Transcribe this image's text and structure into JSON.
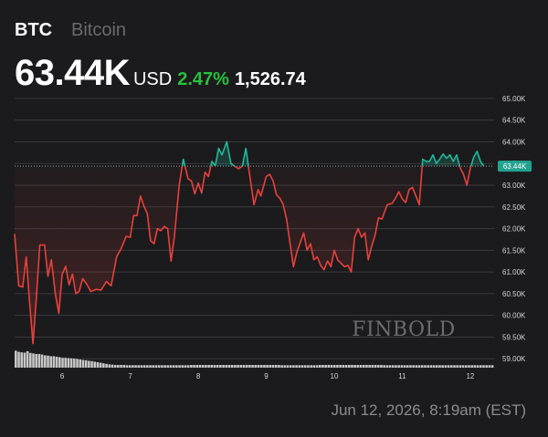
{
  "header": {
    "ticker": "BTC",
    "name": "Bitcoin",
    "price": "63.44K",
    "currency": "USD",
    "change_pct": "2.47%",
    "change_abs": "1,526.74"
  },
  "footer": {
    "timestamp": "Jun 12, 2026, 8:19am (EST)"
  },
  "watermark": "FINBOLD",
  "colors": {
    "background": "#1b1b1d",
    "up": "#1fb99a",
    "down": "#e8413c",
    "positive_text": "#27c13b",
    "price_tag": "#23a38f",
    "volume": "#d9d9d9"
  },
  "chart_data": {
    "type": "line",
    "title": "",
    "xlabel": "",
    "ylabel": "",
    "xlim": [
      5.3,
      12.35
    ],
    "ylim": [
      58.9,
      65.25
    ],
    "x_ticks": [
      6,
      7,
      8,
      9,
      10,
      11,
      12
    ],
    "x_tick_labels": [
      "6",
      "7",
      "8",
      "9",
      "10",
      "11",
      "12"
    ],
    "y_ticks": [
      59,
      59.5,
      60,
      60.5,
      61,
      61.5,
      62,
      62.5,
      63,
      63.5,
      64,
      64.5,
      65
    ],
    "y_tick_labels": [
      "59.00K",
      "59.50K",
      "60.00K",
      "60.50K",
      "61.00K",
      "61.50K",
      "62.00K",
      "62.50K",
      "63.00K",
      "63.50K",
      "64.00K",
      "64.50K",
      "65.00K"
    ],
    "grid": "horizontal",
    "reference_price": 63.44,
    "current_price_label": "63.44K",
    "coloring": "red below reference, teal above reference",
    "series": [
      {
        "values": [
          [
            5.3,
            61.88
          ],
          [
            5.36,
            60.68
          ],
          [
            5.42,
            60.65
          ],
          [
            5.47,
            61.35
          ],
          [
            5.52,
            60.3
          ],
          [
            5.57,
            59.35
          ],
          [
            5.62,
            60.4
          ],
          [
            5.67,
            61.62
          ],
          [
            5.74,
            61.62
          ],
          [
            5.79,
            60.9
          ],
          [
            5.84,
            61.28
          ],
          [
            5.9,
            60.48
          ],
          [
            5.95,
            60.05
          ],
          [
            6.0,
            60.95
          ],
          [
            6.05,
            61.13
          ],
          [
            6.1,
            60.7
          ],
          [
            6.15,
            60.95
          ],
          [
            6.2,
            60.5
          ],
          [
            6.25,
            60.55
          ],
          [
            6.3,
            60.85
          ],
          [
            6.36,
            60.72
          ],
          [
            6.42,
            60.55
          ],
          [
            6.5,
            60.6
          ],
          [
            6.57,
            60.58
          ],
          [
            6.65,
            60.78
          ],
          [
            6.72,
            60.68
          ],
          [
            6.8,
            61.35
          ],
          [
            6.87,
            61.55
          ],
          [
            6.94,
            61.82
          ],
          [
            7.0,
            61.8
          ],
          [
            7.05,
            62.3
          ],
          [
            7.1,
            62.3
          ],
          [
            7.15,
            62.75
          ],
          [
            7.2,
            62.52
          ],
          [
            7.25,
            62.35
          ],
          [
            7.3,
            61.72
          ],
          [
            7.35,
            61.65
          ],
          [
            7.4,
            62.0
          ],
          [
            7.45,
            61.95
          ],
          [
            7.5,
            62.05
          ],
          [
            7.55,
            62.0
          ],
          [
            7.6,
            61.25
          ],
          [
            7.65,
            61.82
          ],
          [
            7.72,
            63.0
          ],
          [
            7.78,
            63.6
          ],
          [
            7.85,
            63.15
          ],
          [
            7.9,
            63.1
          ],
          [
            7.95,
            62.8
          ],
          [
            8.0,
            63.05
          ],
          [
            8.05,
            62.82
          ],
          [
            8.1,
            63.3
          ],
          [
            8.15,
            63.2
          ],
          [
            8.2,
            63.55
          ],
          [
            8.25,
            63.45
          ],
          [
            8.3,
            63.85
          ],
          [
            8.35,
            63.7
          ],
          [
            8.42,
            64.0
          ],
          [
            8.48,
            63.5
          ],
          [
            8.55,
            63.42
          ],
          [
            8.6,
            63.38
          ],
          [
            8.65,
            63.45
          ],
          [
            8.7,
            63.85
          ],
          [
            8.75,
            63.3
          ],
          [
            8.82,
            62.55
          ],
          [
            8.88,
            62.9
          ],
          [
            8.92,
            62.75
          ],
          [
            9.0,
            63.2
          ],
          [
            9.05,
            63.25
          ],
          [
            9.1,
            63.1
          ],
          [
            9.15,
            62.78
          ],
          [
            9.2,
            62.7
          ],
          [
            9.25,
            62.55
          ],
          [
            9.3,
            62.2
          ],
          [
            9.35,
            61.65
          ],
          [
            9.4,
            61.12
          ],
          [
            9.45,
            61.45
          ],
          [
            9.5,
            61.68
          ],
          [
            9.55,
            61.9
          ],
          [
            9.6,
            61.5
          ],
          [
            9.65,
            61.65
          ],
          [
            9.7,
            61.28
          ],
          [
            9.75,
            61.35
          ],
          [
            9.8,
            61.15
          ],
          [
            9.85,
            61.05
          ],
          [
            9.9,
            61.25
          ],
          [
            9.95,
            61.12
          ],
          [
            10.0,
            61.5
          ],
          [
            10.05,
            61.28
          ],
          [
            10.1,
            61.2
          ],
          [
            10.15,
            61.12
          ],
          [
            10.2,
            61.15
          ],
          [
            10.25,
            61.0
          ],
          [
            10.3,
            61.8
          ],
          [
            10.35,
            62.0
          ],
          [
            10.4,
            61.8
          ],
          [
            10.45,
            61.9
          ],
          [
            10.5,
            61.28
          ],
          [
            10.55,
            61.6
          ],
          [
            10.6,
            61.85
          ],
          [
            10.65,
            62.25
          ],
          [
            10.7,
            62.22
          ],
          [
            10.78,
            62.55
          ],
          [
            10.85,
            62.58
          ],
          [
            10.9,
            62.7
          ],
          [
            10.95,
            62.85
          ],
          [
            11.0,
            62.68
          ],
          [
            11.05,
            62.6
          ],
          [
            11.1,
            62.9
          ],
          [
            11.15,
            62.95
          ],
          [
            11.2,
            62.75
          ],
          [
            11.25,
            62.55
          ],
          [
            11.3,
            63.6
          ],
          [
            11.35,
            63.55
          ],
          [
            11.4,
            63.55
          ],
          [
            11.45,
            63.7
          ],
          [
            11.5,
            63.5
          ],
          [
            11.55,
            63.6
          ],
          [
            11.6,
            63.72
          ],
          [
            11.65,
            63.62
          ],
          [
            11.7,
            63.7
          ],
          [
            11.75,
            63.55
          ],
          [
            11.8,
            63.7
          ],
          [
            11.85,
            63.4
          ],
          [
            11.9,
            63.25
          ],
          [
            11.95,
            63.0
          ],
          [
            12.0,
            63.38
          ],
          [
            12.05,
            63.65
          ],
          [
            12.1,
            63.78
          ],
          [
            12.15,
            63.55
          ],
          [
            12.2,
            63.44
          ]
        ]
      }
    ],
    "volume": [
      0.62,
      0.58,
      0.56,
      0.55,
      0.6,
      0.54,
      0.52,
      0.5,
      0.5,
      0.48,
      0.45,
      0.44,
      0.42,
      0.42,
      0.4,
      0.38,
      0.36,
      0.36,
      0.35,
      0.34,
      0.33,
      0.32,
      0.3,
      0.28,
      0.27,
      0.25,
      0.24,
      0.22,
      0.2,
      0.18,
      0.16,
      0.14,
      0.12,
      0.11,
      0.1,
      0.1,
      0.1,
      0.1,
      0.09,
      0.09,
      0.09,
      0.09,
      0.09,
      0.09,
      0.09,
      0.09,
      0.09,
      0.09,
      0.09,
      0.09,
      0.09,
      0.09,
      0.09,
      0.09,
      0.09,
      0.09,
      0.09,
      0.09,
      0.09,
      0.09,
      0.1,
      0.1,
      0.1,
      0.1,
      0.1,
      0.1,
      0.1,
      0.1,
      0.1,
      0.1,
      0.1,
      0.1,
      0.1,
      0.1,
      0.1,
      0.1,
      0.1,
      0.1,
      0.1,
      0.1,
      0.1,
      0.1,
      0.1,
      0.1,
      0.1,
      0.1,
      0.1,
      0.1,
      0.1,
      0.1,
      0.1,
      0.09,
      0.09,
      0.09,
      0.09,
      0.09,
      0.09,
      0.09,
      0.09,
      0.09,
      0.09,
      0.09,
      0.09,
      0.09,
      0.1,
      0.1,
      0.1,
      0.1,
      0.1,
      0.1,
      0.1,
      0.1,
      0.1,
      0.1,
      0.1,
      0.1,
      0.1,
      0.1,
      0.1,
      0.1,
      0.1,
      0.1,
      0.1,
      0.1,
      0.1,
      0.1,
      0.09,
      0.09,
      0.09,
      0.09,
      0.09,
      0.09,
      0.09,
      0.09,
      0.09,
      0.09,
      0.09,
      0.09,
      0.09,
      0.09,
      0.09,
      0.09,
      0.09,
      0.09,
      0.09,
      0.09,
      0.09,
      0.09,
      0.09,
      0.09,
      0.09,
      0.09,
      0.09,
      0.09,
      0.09,
      0.09,
      0.09,
      0.09,
      0.09,
      0.09,
      0.09,
      0.09,
      0.09,
      0.09
    ]
  }
}
